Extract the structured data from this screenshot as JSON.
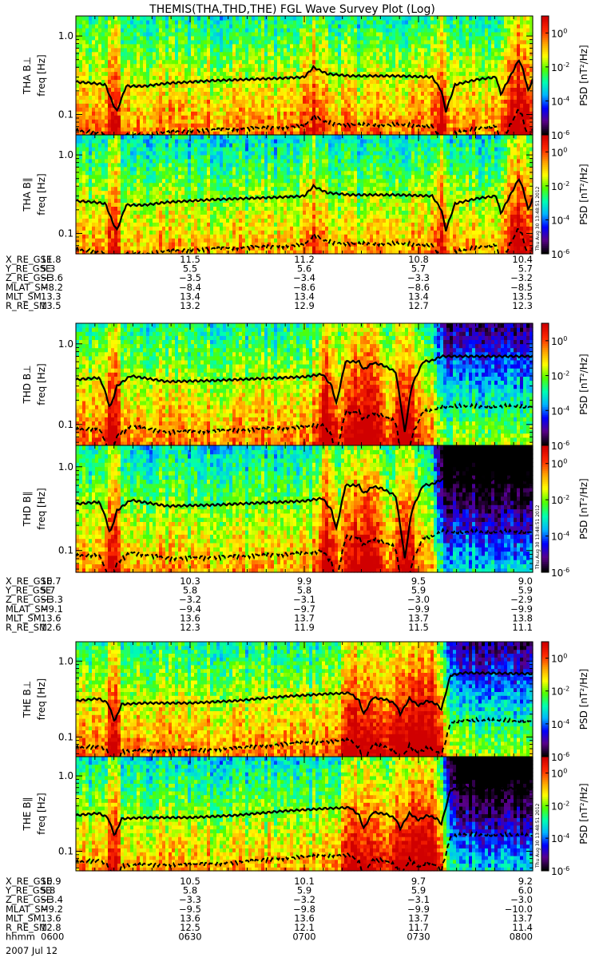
{
  "chart_data": {
    "type": "heatmap",
    "title": "THEMIS(THA,THD,THE) FGL Wave Survey Plot (Log)",
    "yscale": "log",
    "ylim_hz": [
      0.055,
      1.8
    ],
    "yticks": [
      "1.0",
      "0.1"
    ],
    "colorbar": {
      "label": "PSD [nT²/Hz]",
      "scale": "log",
      "range": [
        1e-06,
        10.0
      ],
      "ticks": [
        {
          "base": "10",
          "exp": "0",
          "value": 0
        },
        {
          "base": "10",
          "exp": "-2",
          "value": -2
        },
        {
          "base": "10",
          "exp": "-4",
          "value": -4
        },
        {
          "base": "10",
          "exp": "-6",
          "value": -6
        }
      ],
      "colors": [
        "#000000",
        "#5a008a",
        "#0000ff",
        "#00b4ff",
        "#00ffb0",
        "#50ff00",
        "#ffff00",
        "#ffa000",
        "#ff2800",
        "#d00000"
      ]
    },
    "time_range": [
      "0600",
      "0800"
    ],
    "stamp": "Thu Aug 30 13:48:51 2012",
    "panels": [
      {
        "name": "THA B⊥",
        "ylabel": "THA B⊥",
        "freq_label": "freq [Hz]"
      },
      {
        "name": "THA B∥",
        "ylabel": "THA B∥",
        "freq_label": "freq [Hz]"
      },
      {
        "name": "THD B⊥",
        "ylabel": "THD B⊥",
        "freq_label": "freq [Hz]"
      },
      {
        "name": "THD B∥",
        "ylabel": "THD B∥",
        "freq_label": "freq [Hz]"
      },
      {
        "name": "THE B⊥",
        "ylabel": "THE B⊥",
        "freq_label": "freq [Hz]"
      },
      {
        "name": "THE B∥",
        "ylabel": "THE B∥",
        "freq_label": "freq [Hz]"
      }
    ],
    "ephemeris": [
      {
        "probe": "THA",
        "rows": [
          {
            "label": "X_RE_GSE",
            "values": [
              "11.8",
              "11.5",
              "11.2",
              "10.8",
              "10.4"
            ]
          },
          {
            "label": "Y_RE_GSE",
            "values": [
              "5.3",
              "5.5",
              "5.6",
              "5.7",
              "5.7"
            ]
          },
          {
            "label": "Z_RE_GSE",
            "values": [
              "-3.6",
              "-3.5",
              "-3.4",
              "-3.3",
              "-3.2"
            ]
          },
          {
            "label": "MLAT_SM",
            "values": [
              "-8.2",
              "-8.4",
              "-8.6",
              "-8.6",
              "-8.5"
            ]
          },
          {
            "label": "MLT_SM",
            "values": [
              "13.3",
              "13.4",
              "13.4",
              "13.4",
              "13.5"
            ]
          },
          {
            "label": "R_RE_SM",
            "values": [
              "13.5",
              "13.2",
              "12.9",
              "12.7",
              "12.3"
            ]
          }
        ]
      },
      {
        "probe": "THD",
        "rows": [
          {
            "label": "X_RE_GSE",
            "values": [
              "10.7",
              "10.3",
              "9.9",
              "9.5",
              "9.0"
            ]
          },
          {
            "label": "Y_RE_GSE",
            "values": [
              "5.7",
              "5.8",
              "5.8",
              "5.9",
              "5.9"
            ]
          },
          {
            "label": "Z_RE_GSE",
            "values": [
              "-3.3",
              "-3.2",
              "-3.1",
              "-3.0",
              "-2.9"
            ]
          },
          {
            "label": "MLAT_SM",
            "values": [
              "-9.1",
              "-9.4",
              "-9.7",
              "-9.9",
              "-9.9"
            ]
          },
          {
            "label": "MLT_SM",
            "values": [
              "13.6",
              "13.6",
              "13.7",
              "13.7",
              "13.8"
            ]
          },
          {
            "label": "R_RE_SM",
            "values": [
              "12.6",
              "12.3",
              "11.9",
              "11.5",
              "11.1"
            ]
          }
        ]
      },
      {
        "probe": "THE",
        "rows": [
          {
            "label": "X_RE_GSE",
            "values": [
              "10.9",
              "10.5",
              "10.1",
              "9.7",
              "9.2"
            ]
          },
          {
            "label": "Y_RE_GSE",
            "values": [
              "5.8",
              "5.8",
              "5.9",
              "5.9",
              "6.0"
            ]
          },
          {
            "label": "Z_RE_GSE",
            "values": [
              "-3.4",
              "-3.3",
              "-3.2",
              "-3.1",
              "-3.0"
            ]
          },
          {
            "label": "MLAT_SM",
            "values": [
              "-9.2",
              "-9.5",
              "-9.8",
              "-9.9",
              "-10.0"
            ]
          },
          {
            "label": "MLT_SM",
            "values": [
              "13.6",
              "13.6",
              "13.6",
              "13.7",
              "13.7"
            ]
          },
          {
            "label": "R_RE_SM",
            "values": [
              "12.8",
              "12.5",
              "12.1",
              "11.7",
              "11.4"
            ]
          },
          {
            "label": "hhmm",
            "values": [
              "0600",
              "0630",
              "0700",
              "0730",
              "0800"
            ]
          }
        ]
      }
    ],
    "date": "2007 Jul 12"
  }
}
